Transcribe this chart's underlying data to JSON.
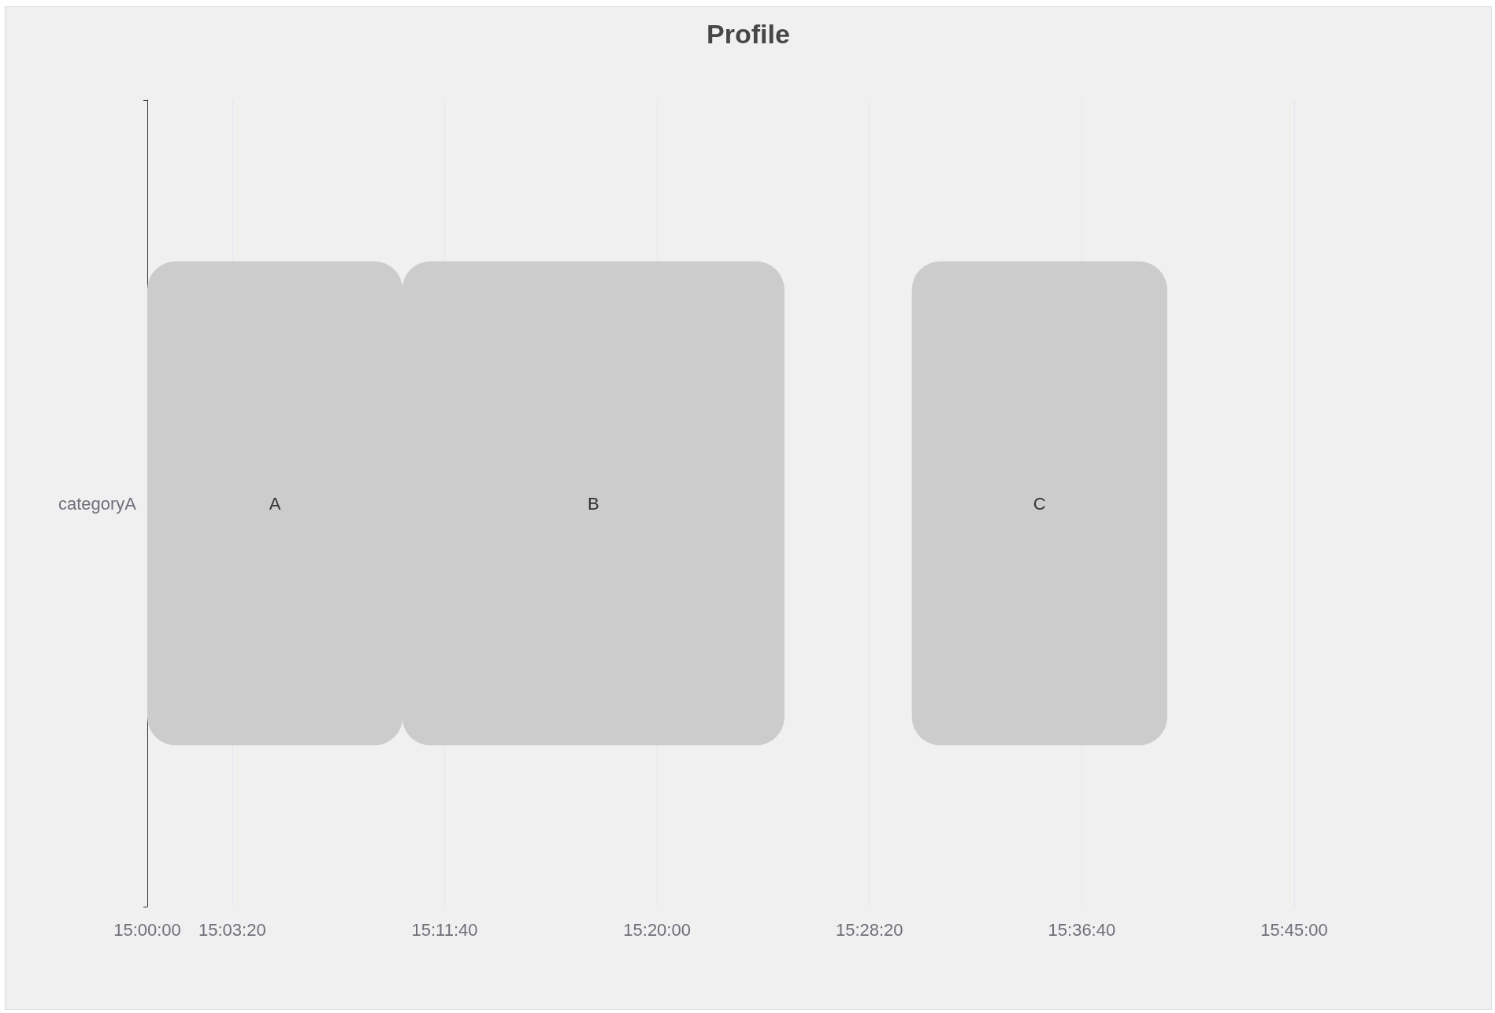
{
  "chart_data": {
    "type": "bar",
    "orientation": "horizontal",
    "title": "Profile",
    "categories": [
      "categoryA"
    ],
    "series": [
      {
        "name": "A",
        "color": "#cccccc",
        "values": [
          0.167
        ],
        "base": [
          15
        ]
      },
      {
        "name": "B",
        "color": "#cccccc",
        "values": [
          0.25
        ],
        "base": [
          15.166667
        ]
      },
      {
        "name": "C",
        "color": "#cccccc",
        "values": [
          0.167
        ],
        "base": [
          15.5
        ]
      }
    ],
    "xlim": [
      15,
      15.75
    ],
    "xticks": [
      {
        "value": 15,
        "label": "15:00:00"
      },
      {
        "value": 15.055556,
        "label": "15:03:20"
      },
      {
        "value": 15.194444,
        "label": "15:11:40"
      },
      {
        "value": 15.333333,
        "label": "15:20:00"
      },
      {
        "value": 15.472222,
        "label": "15:28:20"
      },
      {
        "value": 15.611111,
        "label": "15:36:40"
      },
      {
        "value": 15.75,
        "label": "15:45:00"
      }
    ],
    "grid": "x",
    "legend": false
  }
}
